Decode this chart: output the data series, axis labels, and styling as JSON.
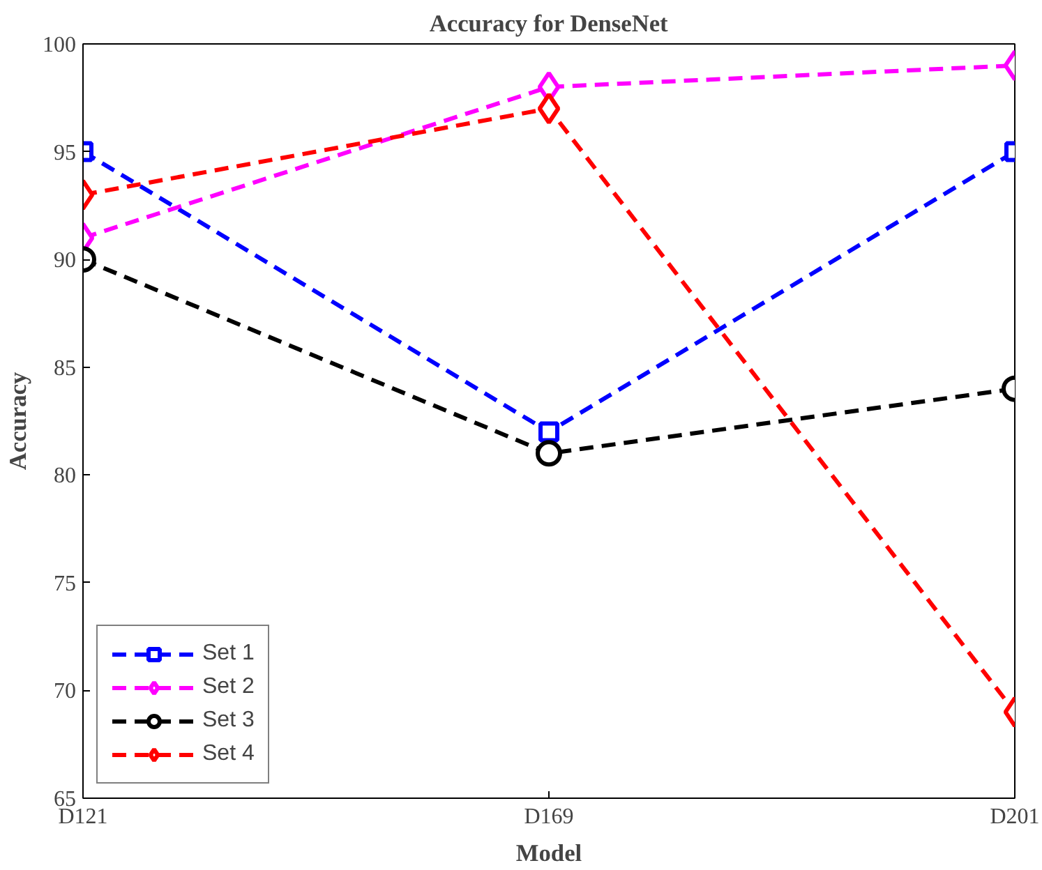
{
  "chart_data": {
    "type": "line",
    "title": "Accuracy for DenseNet",
    "xlabel": "Model",
    "ylabel": "Accuracy",
    "categories": [
      "D121",
      "D169",
      "D201"
    ],
    "series": [
      {
        "name": "Set 1",
        "color": "#0000ff",
        "marker": "square",
        "values": [
          95,
          82,
          95
        ]
      },
      {
        "name": "Set 2",
        "color": "#ff00ff",
        "marker": "diamond",
        "values": [
          91,
          98,
          99
        ]
      },
      {
        "name": "Set 3",
        "color": "#000000",
        "marker": "circle",
        "values": [
          90,
          81,
          84
        ]
      },
      {
        "name": "Set 4",
        "color": "#ff0000",
        "marker": "diamond",
        "values": [
          93,
          97,
          69
        ]
      }
    ],
    "ylim": [
      65,
      100
    ],
    "yticks": [
      65,
      70,
      75,
      80,
      85,
      90,
      95,
      100
    ],
    "grid": false,
    "legend": "bottom left",
    "line_style": "dashed"
  }
}
